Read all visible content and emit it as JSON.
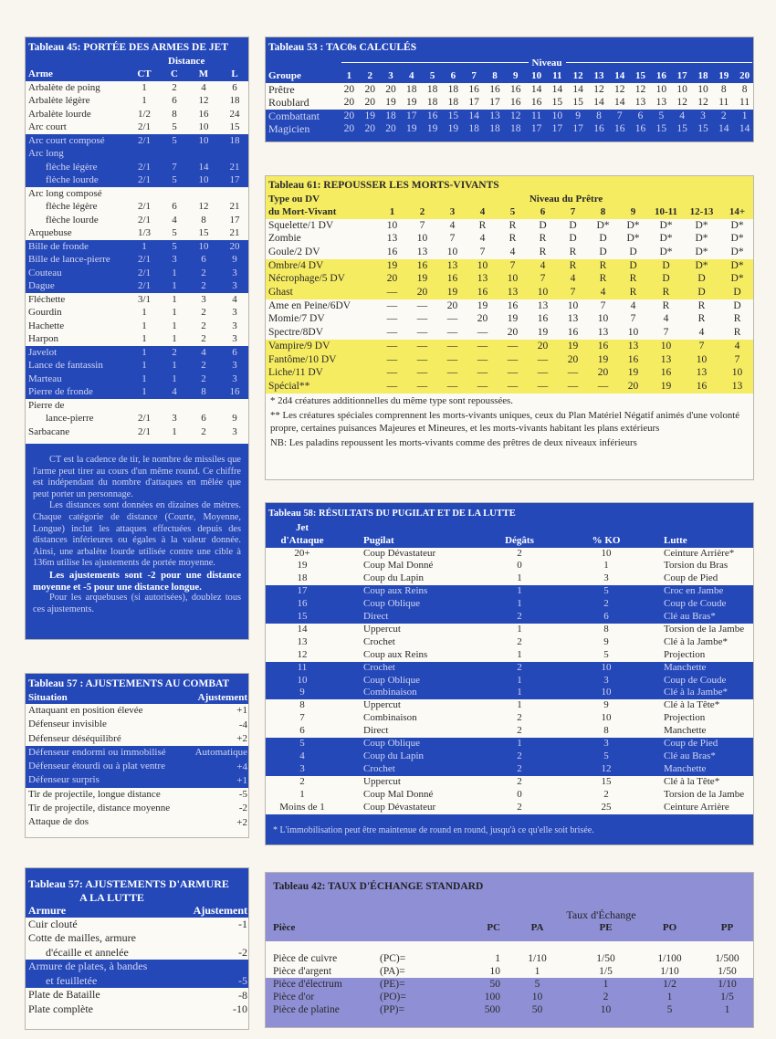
{
  "colors": {
    "blue": "#2448b8",
    "yellow": "#f6ec62",
    "lavender": "#8f8fd6",
    "paper": "#f8f6ef"
  },
  "t45": {
    "title": "Tableau 45: PORTÉE DES ARMES DE JET",
    "distance_label": "Distance",
    "headers": [
      "Arme",
      "CT",
      "C",
      "M",
      "L"
    ],
    "rows": [
      {
        "cells": [
          "Arbalète de poing",
          "1",
          "2",
          "4",
          "6"
        ]
      },
      {
        "cells": [
          "Arbalète légère",
          "1",
          "6",
          "12",
          "18"
        ]
      },
      {
        "cells": [
          "Arbalète lourde",
          "1/2",
          "8",
          "16",
          "24"
        ]
      },
      {
        "cells": [
          "Arc court",
          "2/1",
          "5",
          "10",
          "15"
        ]
      },
      {
        "cells": [
          "Arc court composé",
          "2/1",
          "5",
          "10",
          "18"
        ],
        "band": true
      },
      {
        "cells": [
          "Arc long",
          "",
          "",
          "",
          ""
        ],
        "band": true
      },
      {
        "cells": [
          "flèche légère",
          "2/1",
          "7",
          "14",
          "21"
        ],
        "band": true,
        "indent": true
      },
      {
        "cells": [
          "flèche lourde",
          "2/1",
          "5",
          "10",
          "17"
        ],
        "band": true,
        "indent": true
      },
      {
        "cells": [
          "Arc long composé",
          "",
          "",
          "",
          ""
        ]
      },
      {
        "cells": [
          "flèche légère",
          "2/1",
          "6",
          "12",
          "21"
        ],
        "indent": true
      },
      {
        "cells": [
          "flèche lourde",
          "2/1",
          "4",
          "8",
          "17"
        ],
        "indent": true
      },
      {
        "cells": [
          "Arquebuse",
          "1/3",
          "5",
          "15",
          "21"
        ]
      },
      {
        "cells": [
          "Bille de fronde",
          "1",
          "5",
          "10",
          "20"
        ],
        "band": true
      },
      {
        "cells": [
          "Bille de lance-pierre",
          "2/1",
          "3",
          "6",
          "9"
        ],
        "band": true
      },
      {
        "cells": [
          "Couteau",
          "2/1",
          "1",
          "2",
          "3"
        ],
        "band": true
      },
      {
        "cells": [
          "Dague",
          "2/1",
          "1",
          "2",
          "3"
        ],
        "band": true
      },
      {
        "cells": [
          "Fléchette",
          "3/1",
          "1",
          "3",
          "4"
        ]
      },
      {
        "cells": [
          "Gourdin",
          "1",
          "1",
          "2",
          "3"
        ]
      },
      {
        "cells": [
          "Hachette",
          "1",
          "1",
          "2",
          "3"
        ]
      },
      {
        "cells": [
          "Harpon",
          "1",
          "1",
          "2",
          "3"
        ]
      },
      {
        "cells": [
          "Javelot",
          "1",
          "2",
          "4",
          "6"
        ],
        "band": true
      },
      {
        "cells": [
          "Lance de fantassin",
          "1",
          "1",
          "2",
          "3"
        ],
        "band": true
      },
      {
        "cells": [
          "Marteau",
          "1",
          "1",
          "2",
          "3"
        ],
        "band": true
      },
      {
        "cells": [
          "Pierre de fronde",
          "1",
          "4",
          "8",
          "16"
        ],
        "band": true
      },
      {
        "cells": [
          "Pierre de",
          "",
          "",
          "",
          ""
        ]
      },
      {
        "cells": [
          "lance-pierre",
          "2/1",
          "3",
          "6",
          "9"
        ],
        "indent": true
      },
      {
        "cells": [
          "Sarbacane",
          "2/1",
          "1",
          "2",
          "3"
        ]
      }
    ],
    "notes": [
      "CT est la cadence de tir, le nombre de missiles que l'arme peut tirer au cours d'un même round. Ce chiffre est indépendant du nombre d'attaques en mêlée que peut porter un personnage.",
      "Les distances sont données en dizaines de mètres. Chaque catégorie de distance (Courte, Moyenne, Longue) inclut les attaques effectuées depuis des distances inférieures ou égales à la valeur donnée. Ainsi, une arbalète lourde utilisée contre une cible à 136m utilise les ajustements de portée moyenne.",
      "Les ajustements sont -2 pour une distance moyenne et -5 pour une distance longue.",
      "Pour les arquebuses (si autorisées), doublez tous ces ajustements."
    ]
  },
  "t57a": {
    "title": "Tableau 57 : AJUSTEMENTS AU COMBAT",
    "headers": [
      "Situation",
      "Ajustement"
    ],
    "rows": [
      {
        "cells": [
          "Attaquant en position élevée",
          "+1"
        ]
      },
      {
        "cells": [
          "Défenseur invisible",
          "-4"
        ]
      },
      {
        "cells": [
          "Défenseur déséquilibré",
          "+2"
        ]
      },
      {
        "cells": [
          "Défenseur endormi ou immobilisé",
          "Automatique"
        ],
        "band": true
      },
      {
        "cells": [
          "Défenseur étourdi ou à plat ventre",
          "+4"
        ],
        "band": true
      },
      {
        "cells": [
          "Défenseur surpris",
          "+1"
        ],
        "band": true
      },
      {
        "cells": [
          "Tir de projectile, longue distance",
          "-5"
        ]
      },
      {
        "cells": [
          "Tir de projectile, distance moyenne",
          "-2"
        ]
      },
      {
        "cells": [
          "Attaque de dos",
          "+2"
        ]
      }
    ]
  },
  "t57b": {
    "title_line1": "Tableau 57: AJUSTEMENTS D'ARMURE",
    "title_line2": "A LA LUTTE",
    "headers": [
      "Armure",
      "Ajustement"
    ],
    "rows": [
      {
        "cells": [
          "Cuir clouté",
          "-1"
        ]
      },
      {
        "cells": [
          "Cotte de mailles, armure",
          ""
        ]
      },
      {
        "cells": [
          "d'écaille et annelée",
          "-2"
        ],
        "indent": true
      },
      {
        "cells": [
          "Armure de plates, à bandes",
          ""
        ],
        "band": true
      },
      {
        "cells": [
          "et feuilletée",
          "-5"
        ],
        "band": true,
        "indent": true
      },
      {
        "cells": [
          "Plate de Bataille",
          "-8"
        ]
      },
      {
        "cells": [
          "Plate complète",
          "-10"
        ]
      }
    ]
  },
  "t53": {
    "title": "Tableau 53 : TAC0s CALCULÉS",
    "niveau_label": "Niveau",
    "group_label": "Groupe",
    "levels": [
      "1",
      "2",
      "3",
      "4",
      "5",
      "6",
      "7",
      "8",
      "9",
      "10",
      "11",
      "12",
      "13",
      "14",
      "15",
      "16",
      "17",
      "18",
      "19",
      "20"
    ],
    "rows": [
      {
        "cells": [
          "Prêtre",
          "20",
          "20",
          "20",
          "18",
          "18",
          "18",
          "16",
          "16",
          "16",
          "14",
          "14",
          "14",
          "12",
          "12",
          "12",
          "10",
          "10",
          "10",
          "8",
          "8"
        ]
      },
      {
        "cells": [
          "Roublard",
          "20",
          "20",
          "19",
          "19",
          "18",
          "18",
          "17",
          "17",
          "16",
          "16",
          "15",
          "15",
          "14",
          "14",
          "13",
          "13",
          "12",
          "12",
          "11",
          "11"
        ]
      },
      {
        "cells": [
          "Combattant",
          "20",
          "19",
          "18",
          "17",
          "16",
          "15",
          "14",
          "13",
          "12",
          "11",
          "10",
          "9",
          "8",
          "7",
          "6",
          "5",
          "4",
          "3",
          "2",
          "1"
        ],
        "band": true
      },
      {
        "cells": [
          "Magicien",
          "20",
          "20",
          "20",
          "19",
          "19",
          "19",
          "18",
          "18",
          "18",
          "17",
          "17",
          "17",
          "16",
          "16",
          "16",
          "15",
          "15",
          "15",
          "14",
          "14"
        ],
        "band": true
      }
    ]
  },
  "t61": {
    "title": "Tableau 61: REPOUSSER LES MORTS-VIVANTS",
    "type_label_1": "Type ou DV",
    "type_label_2": "du Mort-Vivant",
    "niveau_label": "Niveau du Prêtre",
    "levels": [
      "1",
      "2",
      "3",
      "4",
      "5",
      "6",
      "7",
      "8",
      "9",
      "10-11",
      "12-13",
      "14+"
    ],
    "rows": [
      {
        "cells": [
          "Squelette/1 DV",
          "10",
          "7",
          "4",
          "R",
          "R",
          "D",
          "D",
          "D*",
          "D*",
          "D*",
          "D*",
          "D*"
        ]
      },
      {
        "cells": [
          "Zombie",
          "13",
          "10",
          "7",
          "4",
          "R",
          "R",
          "D",
          "D",
          "D*",
          "D*",
          "D*",
          "D*"
        ]
      },
      {
        "cells": [
          "Goule/2 DV",
          "16",
          "13",
          "10",
          "7",
          "4",
          "R",
          "R",
          "D",
          "D",
          "D*",
          "D*",
          "D*"
        ]
      },
      {
        "cells": [
          "Ombre/4 DV",
          "19",
          "16",
          "13",
          "10",
          "7",
          "4",
          "R",
          "R",
          "D",
          "D",
          "D*",
          "D*"
        ],
        "band": true
      },
      {
        "cells": [
          "Nécrophage/5 DV",
          "20",
          "19",
          "16",
          "13",
          "10",
          "7",
          "4",
          "R",
          "R",
          "D",
          "D",
          "D*"
        ],
        "band": true
      },
      {
        "cells": [
          "Ghast",
          "—",
          "20",
          "19",
          "16",
          "13",
          "10",
          "7",
          "4",
          "R",
          "R",
          "D",
          "D"
        ],
        "band": true
      },
      {
        "cells": [
          "Ame en Peine/6DV",
          "—",
          "—",
          "20",
          "19",
          "16",
          "13",
          "10",
          "7",
          "4",
          "R",
          "R",
          "D"
        ]
      },
      {
        "cells": [
          "Momie/7 DV",
          "—",
          "—",
          "—",
          "20",
          "19",
          "16",
          "13",
          "10",
          "7",
          "4",
          "R",
          "R"
        ]
      },
      {
        "cells": [
          "Spectre/8DV",
          "—",
          "—",
          "—",
          "—",
          "20",
          "19",
          "16",
          "13",
          "10",
          "7",
          "4",
          "R"
        ]
      },
      {
        "cells": [
          "Vampire/9 DV",
          "—",
          "—",
          "—",
          "—",
          "—",
          "20",
          "19",
          "16",
          "13",
          "10",
          "7",
          "4"
        ],
        "band": true
      },
      {
        "cells": [
          "Fantôme/10 DV",
          "—",
          "—",
          "—",
          "—",
          "—",
          "—",
          "20",
          "19",
          "16",
          "13",
          "10",
          "7"
        ],
        "band": true
      },
      {
        "cells": [
          "Liche/11 DV",
          "—",
          "—",
          "—",
          "—",
          "—",
          "—",
          "—",
          "20",
          "19",
          "16",
          "13",
          "10"
        ],
        "band": true
      },
      {
        "cells": [
          "Spécial**",
          "—",
          "—",
          "—",
          "—",
          "—",
          "—",
          "—",
          "—",
          "20",
          "19",
          "16",
          "13"
        ],
        "band": true
      }
    ],
    "footnotes": [
      "* 2d4 créatures additionnelles du même type sont repoussées.",
      "** Les créatures spéciales comprennent les morts-vivants uniques, ceux du Plan Matériel Négatif animés d'une volonté propre, certaines puisances Majeures et Mineures, et les morts-vivants habitant les plans extérieurs",
      "NB: Les paladins repoussent les morts-vivants comme des prêtres de deux niveaux inférieurs"
    ]
  },
  "t58": {
    "title": "Tableau 58: RÉSULTATS DU PUGILAT ET DE LA LUTTE",
    "jet_label_1": "Jet",
    "headers": [
      "d'Attaque",
      "Pugilat",
      "Dégâts",
      "% KO",
      "Lutte"
    ],
    "rows": [
      {
        "cells": [
          "20+",
          "Coup Dévastateur",
          "2",
          "10",
          "Ceinture Arrière*"
        ]
      },
      {
        "cells": [
          "19",
          "Coup Mal Donné",
          "0",
          "1",
          "Torsion du Bras"
        ]
      },
      {
        "cells": [
          "18",
          "Coup du Lapin",
          "1",
          "3",
          "Coup de Pied"
        ]
      },
      {
        "cells": [
          "17",
          "Coup aux Reins",
          "1",
          "5",
          "Croc en Jambe"
        ],
        "band": true
      },
      {
        "cells": [
          "16",
          "Coup Oblique",
          "1",
          "2",
          "Coup de Coude"
        ],
        "band": true
      },
      {
        "cells": [
          "15",
          "Direct",
          "2",
          "6",
          "Clé au Bras*"
        ],
        "band": true
      },
      {
        "cells": [
          "14",
          "Uppercut",
          "1",
          "8",
          "Torsion de la Jambe"
        ]
      },
      {
        "cells": [
          "13",
          "Crochet",
          "2",
          "9",
          "Clé à la Jambe*"
        ]
      },
      {
        "cells": [
          "12",
          "Coup aux Reins",
          "1",
          "5",
          "Projection"
        ]
      },
      {
        "cells": [
          "11",
          "Crochet",
          "2",
          "10",
          "Manchette"
        ],
        "band": true
      },
      {
        "cells": [
          "10",
          "Coup Oblique",
          "1",
          "3",
          "Coup de Coude"
        ],
        "band": true
      },
      {
        "cells": [
          "9",
          "Combinaison",
          "1",
          "10",
          "Clé à la Jambe*"
        ],
        "band": true
      },
      {
        "cells": [
          "8",
          "Uppercut",
          "1",
          "9",
          "Clé à la Tête*"
        ]
      },
      {
        "cells": [
          "7",
          "Combinaison",
          "2",
          "10",
          "Projection"
        ]
      },
      {
        "cells": [
          "6",
          "Direct",
          "2",
          "8",
          "Manchette"
        ]
      },
      {
        "cells": [
          "5",
          "Coup Oblique",
          "1",
          "3",
          "Coup de Pied"
        ],
        "band": true
      },
      {
        "cells": [
          "4",
          "Coup du Lapin",
          "2",
          "5",
          "Clé au Bras*"
        ],
        "band": true
      },
      {
        "cells": [
          "3",
          "Crochet",
          "2",
          "12",
          "Manchette"
        ],
        "band": true
      },
      {
        "cells": [
          "2",
          "Uppercut",
          "2",
          "15",
          "Clé à la Tête*"
        ]
      },
      {
        "cells": [
          "1",
          "Coup Mal Donné",
          "0",
          "2",
          "Torsion de la Jambe"
        ]
      },
      {
        "cells": [
          "Moins de 1",
          "Coup Dévastateur",
          "2",
          "25",
          "Ceinture Arrière"
        ]
      }
    ],
    "footnote": "* L'immobilisation peut être maintenue de round en round, jusqu'à ce qu'elle soit brisée."
  },
  "t42": {
    "title": "Tableau 42: TAUX D'ÉCHANGE STANDARD",
    "rate_label": "Taux d'Échange",
    "headers": [
      "Pièce",
      "",
      "PC",
      "PA",
      "PE",
      "PO",
      "PP"
    ],
    "rows": [
      {
        "cells": [
          "Pièce de cuivre",
          "(PC)=",
          "1",
          "1/10",
          "1/50",
          "1/100",
          "1/500"
        ]
      },
      {
        "cells": [
          "Pièce d'argent",
          "(PA)=",
          "10",
          "1",
          "1/5",
          "1/10",
          "1/50"
        ]
      },
      {
        "cells": [
          "Pièce d'électrum",
          "(PE)=",
          "50",
          "5",
          "1",
          "1/2",
          "1/10"
        ],
        "band": true
      },
      {
        "cells": [
          "Pièce d'or",
          "(PO)=",
          "100",
          "10",
          "2",
          "1",
          "1/5"
        ],
        "band": true
      },
      {
        "cells": [
          "Pièce de platine",
          "(PP)=",
          "500",
          "50",
          "10",
          "5",
          "1"
        ],
        "band": true
      }
    ]
  }
}
